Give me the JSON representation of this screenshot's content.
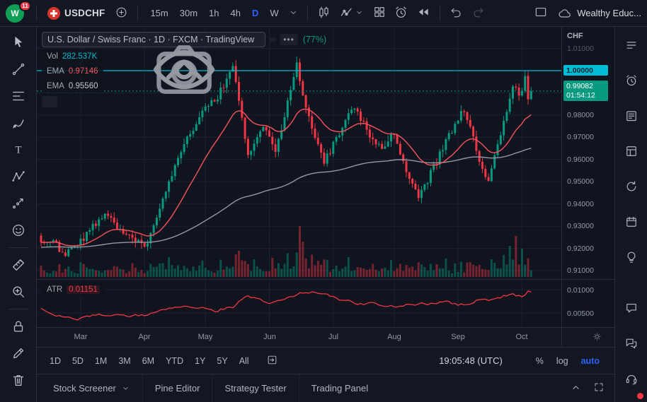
{
  "top_toolbar": {
    "logo_letter": "W",
    "notification_count": "11",
    "symbol": "USDCHF",
    "timeframes": [
      "15m",
      "30m",
      "1h",
      "4h",
      "D",
      "W"
    ],
    "active_timeframe": "D",
    "account_name": "Wealthy Educ..."
  },
  "left_toolbar": {
    "tools": [
      {
        "icon": "cursor-icon"
      },
      {
        "icon": "trendline-icon"
      },
      {
        "icon": "fib-retracement-icon"
      },
      {
        "icon": "brush-icon"
      },
      {
        "icon": "text-icon"
      },
      {
        "icon": "xabcd-pattern-icon"
      },
      {
        "icon": "forecast-icon"
      },
      {
        "icon": "emoji-icon"
      },
      {
        "icon": "measure-icon",
        "group": 2
      },
      {
        "icon": "zoom-in-icon"
      },
      {
        "icon": "lock-icon",
        "group": 3
      },
      {
        "icon": "edit-icon"
      },
      {
        "icon": "remove-drawings-icon"
      }
    ]
  },
  "right_toolbar": {
    "tools": [
      {
        "icon": "watchlist-icon"
      },
      {
        "icon": "alerts-icon"
      },
      {
        "icon": "news-icon"
      },
      {
        "icon": "data-window-icon"
      },
      {
        "icon": "hotlist-icon"
      },
      {
        "icon": "calendar-icon"
      },
      {
        "icon": "ideas-icon"
      },
      {
        "icon": "public-chat-icon",
        "group": 2
      },
      {
        "icon": "private-chat-icon"
      }
    ],
    "bottom_tool": {
      "icon": "help-icon"
    }
  },
  "chart": {
    "legend": {
      "title": "U.S. Dollar / Swiss Franc · 1D · FXCM · TradingView",
      "change": "(77%)",
      "vol_label": "Vol",
      "vol_value": "282.537K",
      "ema1_label": "EMA",
      "ema1_value": "0.97146",
      "ema2_label": "EMA",
      "ema2_value": "0.95560"
    },
    "price_scale": {
      "currency": "CHF",
      "highlight_price_display": "1.00000",
      "last_price_display": "0.99082",
      "countdown": "01:54:12"
    },
    "atr": {
      "label": "ATR",
      "value": "0.01151"
    },
    "chart_data": {
      "type": "candlestick",
      "symbol": "USDCHF",
      "interval": "1D",
      "candle_count": 162,
      "last_price": 0.99082,
      "highlight_level": 1.0,
      "price_axis_ticks": [
        1.01,
        0.98,
        0.97,
        0.96,
        0.95,
        0.94,
        0.93,
        0.92,
        0.91
      ],
      "grid_prices": [
        0.91,
        0.92,
        0.93,
        0.94,
        0.95,
        0.96,
        0.97,
        0.98,
        0.99,
        1.0,
        1.01
      ],
      "close_anchors": [
        [
          0,
          0.9245
        ],
        [
          5,
          0.9215
        ],
        [
          8,
          0.9165
        ],
        [
          13,
          0.923
        ],
        [
          20,
          0.935
        ],
        [
          24,
          0.9315
        ],
        [
          30,
          0.9245
        ],
        [
          34,
          0.92
        ],
        [
          44,
          0.958
        ],
        [
          52,
          0.98
        ],
        [
          58,
          0.988
        ],
        [
          63,
          1.002
        ],
        [
          66,
          0.978
        ],
        [
          68,
          0.962
        ],
        [
          73,
          0.976
        ],
        [
          77,
          0.9635
        ],
        [
          84,
          1.002
        ],
        [
          88,
          0.978
        ],
        [
          93,
          0.959
        ],
        [
          103,
          0.9845
        ],
        [
          108,
          0.97
        ],
        [
          112,
          0.966
        ],
        [
          116,
          0.972
        ],
        [
          120,
          0.955
        ],
        [
          124,
          0.943
        ],
        [
          126,
          0.948
        ],
        [
          132,
          0.965
        ],
        [
          139,
          0.983
        ],
        [
          144,
          0.959
        ],
        [
          147,
          0.9505
        ],
        [
          152,
          0.976
        ],
        [
          155,
          0.9935
        ],
        [
          157,
          0.989
        ],
        [
          159,
          0.996
        ],
        [
          160,
          0.988
        ],
        [
          161,
          0.99082
        ]
      ],
      "months": [
        [
          "Mar",
          13
        ],
        [
          "Apr",
          34
        ],
        [
          "May",
          54
        ],
        [
          "Jun",
          75
        ],
        [
          "Jul",
          96
        ],
        [
          "Aug",
          116
        ],
        [
          "Sep",
          137
        ],
        [
          "Oct",
          158
        ]
      ],
      "volume_spikes": [
        [
          85,
          72
        ],
        [
          86,
          50
        ],
        [
          101,
          28
        ],
        [
          154,
          44
        ],
        [
          156,
          58
        ],
        [
          158,
          40
        ]
      ],
      "atr_axis_ticks": [
        0.01,
        0.005
      ],
      "ema_fast_value": 0.97146,
      "ema_slow_value": 0.9556,
      "atr_value": 0.01151
    }
  },
  "range_bar": {
    "ranges": [
      "1D",
      "5D",
      "1M",
      "3M",
      "6M",
      "YTD",
      "1Y",
      "5Y",
      "All"
    ],
    "clock": "19:05:48 (UTC)",
    "scale_buttons": [
      "%",
      "log",
      "auto"
    ],
    "active_scale_button": "auto"
  },
  "footer": {
    "tabs": [
      "Stock Screener",
      "Pine Editor",
      "Strategy Tester",
      "Trading Panel"
    ],
    "dropdown_tab": "Stock Screener"
  },
  "colors": {
    "up": "#089981",
    "down": "#f23645",
    "volume_up": "rgba(8,153,129,0.45)",
    "volume_down": "rgba(242,54,69,0.45)",
    "ema_fast": "#f7525f",
    "ema_slow": "#9598a1",
    "highlight_line": "#00bcd4",
    "accent": "#2962ff",
    "atr_line": "#f23645",
    "grid": "#1b2130"
  }
}
